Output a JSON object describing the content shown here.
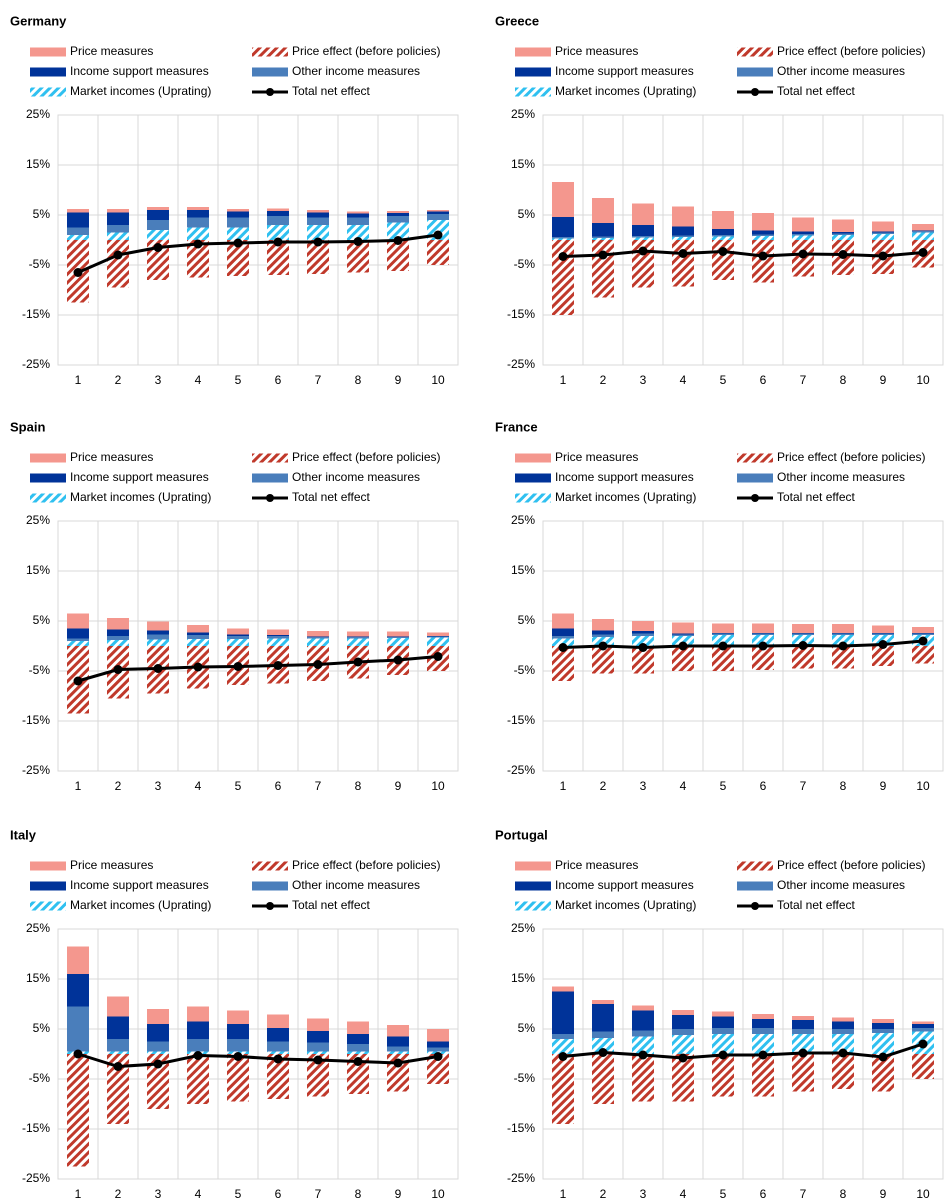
{
  "chart_data": [
    {
      "type": "bar",
      "title": "Germany",
      "categories": [
        1,
        2,
        3,
        4,
        5,
        6,
        7,
        8,
        9,
        10
      ],
      "ylim": [
        -25,
        25
      ],
      "yticks": [
        {
          "value": -25,
          "label": "-25%"
        },
        {
          "value": -15,
          "label": "-15%"
        },
        {
          "value": -5,
          "label": "-5%"
        },
        {
          "value": 5,
          "label": "5%"
        },
        {
          "value": 15,
          "label": "15%"
        },
        {
          "value": 25,
          "label": "25%"
        }
      ],
      "grid": true,
      "series": [
        {
          "name": "Price measures",
          "type": "bar",
          "color": "#f4978e",
          "hatch": false,
          "values": [
            0.7,
            0.7,
            0.6,
            0.6,
            0.5,
            0.5,
            0.5,
            0.4,
            0.4,
            0.3
          ]
        },
        {
          "name": "Price effect (before policies)",
          "type": "bar",
          "color": "#c0392b",
          "hatch": true,
          "values": [
            -12.5,
            -9.5,
            -8,
            -7.5,
            -7.2,
            -7,
            -6.8,
            -6.5,
            -6.2,
            -5
          ]
        },
        {
          "name": "Income support measures",
          "type": "bar",
          "color": "#003399",
          "hatch": false,
          "values": [
            3,
            2.5,
            2,
            1.5,
            1.2,
            1,
            1,
            0.8,
            0.6,
            0.5
          ]
        },
        {
          "name": "Other income measures",
          "type": "bar",
          "color": "#4a7ebb",
          "hatch": false,
          "values": [
            1.5,
            1.5,
            2,
            2,
            2,
            1.8,
            1.5,
            1.5,
            1.3,
            1.2
          ]
        },
        {
          "name": "Market incomes (Uprating)",
          "type": "bar",
          "color": "#2fc0f0",
          "hatch": true,
          "values": [
            1,
            1.5,
            2,
            2.5,
            2.5,
            3,
            3,
            3,
            3.5,
            4
          ]
        },
        {
          "name": "Total net effect",
          "type": "line",
          "color": "#000000",
          "hatch": false,
          "values": [
            -6.5,
            -3,
            -1.5,
            -0.8,
            -0.6,
            -0.4,
            -0.4,
            -0.3,
            -0.1,
            1
          ]
        }
      ]
    },
    {
      "type": "bar",
      "title": "Greece",
      "categories": [
        1,
        2,
        3,
        4,
        5,
        6,
        7,
        8,
        9,
        10
      ],
      "ylim": [
        -25,
        25
      ],
      "yticks": [
        {
          "value": -25,
          "label": "-25%"
        },
        {
          "value": -15,
          "label": "-15%"
        },
        {
          "value": -5,
          "label": "-5%"
        },
        {
          "value": 5,
          "label": "5%"
        },
        {
          "value": 15,
          "label": "15%"
        },
        {
          "value": 25,
          "label": "25%"
        }
      ],
      "grid": true,
      "series": [
        {
          "name": "Price measures",
          "type": "bar",
          "color": "#f4978e",
          "hatch": false,
          "values": [
            7,
            5,
            4.3,
            4,
            3.6,
            3.5,
            2.8,
            2.5,
            2,
            1.3
          ]
        },
        {
          "name": "Price effect (before policies)",
          "type": "bar",
          "color": "#c0392b",
          "hatch": true,
          "values": [
            -15,
            -11.5,
            -9.5,
            -9.3,
            -8,
            -8.5,
            -7.3,
            -7,
            -6.8,
            -5.5
          ]
        },
        {
          "name": "Income support measures",
          "type": "bar",
          "color": "#003399",
          "hatch": false,
          "values": [
            4,
            2.7,
            2.2,
            1.8,
            1.2,
            0.8,
            0.5,
            0.3,
            0.2,
            0.1
          ]
        },
        {
          "name": "Other income measures",
          "type": "bar",
          "color": "#4a7ebb",
          "hatch": false,
          "values": [
            0.3,
            0.3,
            0.3,
            0.3,
            0.3,
            0.3,
            0.3,
            0.3,
            0.3,
            0.3
          ]
        },
        {
          "name": "Market incomes (Uprating)",
          "type": "bar",
          "color": "#2fc0f0",
          "hatch": true,
          "values": [
            0.3,
            0.4,
            0.5,
            0.6,
            0.7,
            0.8,
            0.9,
            1,
            1.2,
            1.5
          ]
        },
        {
          "name": "Total net effect",
          "type": "line",
          "color": "#000000",
          "hatch": false,
          "values": [
            -3.3,
            -3,
            -2.2,
            -2.7,
            -2.3,
            -3.2,
            -2.8,
            -2.9,
            -3.2,
            -2.5
          ]
        }
      ]
    },
    {
      "type": "bar",
      "title": "Spain",
      "categories": [
        1,
        2,
        3,
        4,
        5,
        6,
        7,
        8,
        9,
        10
      ],
      "ylim": [
        -25,
        25
      ],
      "yticks": [
        {
          "value": -25,
          "label": "-25%"
        },
        {
          "value": -15,
          "label": "-15%"
        },
        {
          "value": -5,
          "label": "-5%"
        },
        {
          "value": 5,
          "label": "5%"
        },
        {
          "value": 15,
          "label": "15%"
        },
        {
          "value": 25,
          "label": "25%"
        }
      ],
      "grid": true,
      "series": [
        {
          "name": "Price measures",
          "type": "bar",
          "color": "#f4978e",
          "hatch": false,
          "values": [
            3,
            2.3,
            1.8,
            1.5,
            1.2,
            1.1,
            1.1,
            1,
            1,
            0.7
          ]
        },
        {
          "name": "Price effect (before policies)",
          "type": "bar",
          "color": "#c0392b",
          "hatch": true,
          "values": [
            -13.5,
            -10.5,
            -9.5,
            -8.5,
            -7.8,
            -7.5,
            -7,
            -6.5,
            -5.8,
            -5
          ]
        },
        {
          "name": "Income support measures",
          "type": "bar",
          "color": "#003399",
          "hatch": false,
          "values": [
            2,
            1.3,
            0.8,
            0.5,
            0.3,
            0.2,
            0.1,
            0.1,
            0.1,
            0.1
          ]
        },
        {
          "name": "Other income measures",
          "type": "bar",
          "color": "#4a7ebb",
          "hatch": false,
          "values": [
            0.5,
            0.8,
            1,
            0.8,
            0.6,
            0.5,
            0.3,
            0.3,
            0.2,
            0.2
          ]
        },
        {
          "name": "Market incomes (Uprating)",
          "type": "bar",
          "color": "#2fc0f0",
          "hatch": true,
          "values": [
            1,
            1.2,
            1.3,
            1.4,
            1.4,
            1.5,
            1.5,
            1.5,
            1.6,
            1.7
          ]
        },
        {
          "name": "Total net effect",
          "type": "line",
          "color": "#000000",
          "hatch": false,
          "values": [
            -7,
            -4.7,
            -4.5,
            -4.2,
            -4.1,
            -3.9,
            -3.7,
            -3.2,
            -2.8,
            -2.1
          ]
        }
      ]
    },
    {
      "type": "bar",
      "title": "France",
      "categories": [
        1,
        2,
        3,
        4,
        5,
        6,
        7,
        8,
        9,
        10
      ],
      "ylim": [
        -25,
        25
      ],
      "yticks": [
        {
          "value": -25,
          "label": "-25%"
        },
        {
          "value": -15,
          "label": "-15%"
        },
        {
          "value": -5,
          "label": "-5%"
        },
        {
          "value": 5,
          "label": "5%"
        },
        {
          "value": 15,
          "label": "15%"
        },
        {
          "value": 25,
          "label": "25%"
        }
      ],
      "grid": true,
      "series": [
        {
          "name": "Price measures",
          "type": "bar",
          "color": "#f4978e",
          "hatch": false,
          "values": [
            3,
            2.3,
            2,
            2.2,
            1.9,
            1.9,
            1.8,
            1.8,
            1.5,
            1.2
          ]
        },
        {
          "name": "Price effect (before policies)",
          "type": "bar",
          "color": "#c0392b",
          "hatch": true,
          "values": [
            -7,
            -5.5,
            -5.5,
            -5,
            -5,
            -4.8,
            -4.5,
            -4.5,
            -4,
            -3.5
          ]
        },
        {
          "name": "Income support measures",
          "type": "bar",
          "color": "#003399",
          "hatch": false,
          "values": [
            1.5,
            0.8,
            0.5,
            0.2,
            0.1,
            0.1,
            0.1,
            0.1,
            0.1,
            0.1
          ]
        },
        {
          "name": "Other income measures",
          "type": "bar",
          "color": "#4a7ebb",
          "hatch": false,
          "values": [
            0.5,
            0.5,
            0.5,
            0.3,
            0.3,
            0.3,
            0.3,
            0.3,
            0.3,
            0.3
          ]
        },
        {
          "name": "Market incomes (Uprating)",
          "type": "bar",
          "color": "#2fc0f0",
          "hatch": true,
          "values": [
            1.5,
            1.8,
            2,
            2,
            2.2,
            2.2,
            2.2,
            2.2,
            2.2,
            2.2
          ]
        },
        {
          "name": "Total net effect",
          "type": "line",
          "color": "#000000",
          "hatch": false,
          "values": [
            -0.3,
            0,
            -0.3,
            0,
            0,
            0,
            0.1,
            0,
            0.3,
            1
          ]
        }
      ]
    },
    {
      "type": "bar",
      "title": "Italy",
      "categories": [
        1,
        2,
        3,
        4,
        5,
        6,
        7,
        8,
        9,
        10
      ],
      "ylim": [
        -25,
        25
      ],
      "yticks": [
        {
          "value": -25,
          "label": "-25%"
        },
        {
          "value": -15,
          "label": "-15%"
        },
        {
          "value": -5,
          "label": "-5%"
        },
        {
          "value": 5,
          "label": "5%"
        },
        {
          "value": 15,
          "label": "15%"
        },
        {
          "value": 25,
          "label": "25%"
        }
      ],
      "grid": true,
      "series": [
        {
          "name": "Price measures",
          "type": "bar",
          "color": "#f4978e",
          "hatch": false,
          "values": [
            5.5,
            4,
            3,
            3,
            2.7,
            2.7,
            2.5,
            2.5,
            2.3,
            2.5
          ]
        },
        {
          "name": "Price effect (before policies)",
          "type": "bar",
          "color": "#c0392b",
          "hatch": true,
          "values": [
            -22.5,
            -14,
            -11,
            -10,
            -9.5,
            -9,
            -8.5,
            -8,
            -7.5,
            -6
          ]
        },
        {
          "name": "Income support measures",
          "type": "bar",
          "color": "#003399",
          "hatch": false,
          "values": [
            6.5,
            4.5,
            3.5,
            3.5,
            3,
            2.7,
            2.3,
            2,
            2,
            1.2
          ]
        },
        {
          "name": "Other income measures",
          "type": "bar",
          "color": "#4a7ebb",
          "hatch": false,
          "values": [
            9,
            2.5,
            2,
            2.5,
            2.5,
            2,
            1.8,
            1.5,
            1,
            0.8
          ]
        },
        {
          "name": "Market incomes (Uprating)",
          "type": "bar",
          "color": "#2fc0f0",
          "hatch": true,
          "values": [
            0.5,
            0.5,
            0.5,
            0.5,
            0.5,
            0.5,
            0.5,
            0.5,
            0.5,
            0.5
          ]
        },
        {
          "name": "Total net effect",
          "type": "line",
          "color": "#000000",
          "hatch": false,
          "values": [
            0,
            -2.5,
            -2,
            -0.3,
            -0.5,
            -1,
            -1.2,
            -1.5,
            -1.8,
            -0.5
          ]
        }
      ]
    },
    {
      "type": "bar",
      "title": "Portugal",
      "categories": [
        1,
        2,
        3,
        4,
        5,
        6,
        7,
        8,
        9,
        10
      ],
      "ylim": [
        -25,
        25
      ],
      "yticks": [
        {
          "value": -25,
          "label": "-25%"
        },
        {
          "value": -15,
          "label": "-15%"
        },
        {
          "value": -5,
          "label": "-5%"
        },
        {
          "value": 5,
          "label": "5%"
        },
        {
          "value": 15,
          "label": "15%"
        },
        {
          "value": 25,
          "label": "25%"
        }
      ],
      "grid": true,
      "series": [
        {
          "name": "Price measures",
          "type": "bar",
          "color": "#f4978e",
          "hatch": false,
          "values": [
            1,
            0.8,
            1,
            1,
            1,
            1,
            0.8,
            0.8,
            0.8,
            0.5
          ]
        },
        {
          "name": "Price effect (before policies)",
          "type": "bar",
          "color": "#c0392b",
          "hatch": true,
          "values": [
            -14,
            -10,
            -9.5,
            -9.5,
            -8.5,
            -8.5,
            -7.5,
            -7,
            -7.5,
            -5
          ]
        },
        {
          "name": "Income support measures",
          "type": "bar",
          "color": "#003399",
          "hatch": false,
          "values": [
            8.5,
            5.5,
            4,
            2.8,
            2.3,
            1.8,
            1.8,
            1.5,
            1.2,
            0.8
          ]
        },
        {
          "name": "Other income measures",
          "type": "bar",
          "color": "#4a7ebb",
          "hatch": false,
          "values": [
            1,
            1.3,
            1.2,
            1.2,
            1.2,
            1.2,
            1,
            1,
            0.8,
            0.7
          ]
        },
        {
          "name": "Market incomes (Uprating)",
          "type": "bar",
          "color": "#2fc0f0",
          "hatch": true,
          "values": [
            3,
            3.2,
            3.5,
            3.8,
            4,
            4,
            4,
            4,
            4.2,
            4.5
          ]
        },
        {
          "name": "Total net effect",
          "type": "line",
          "color": "#000000",
          "hatch": false,
          "values": [
            -0.5,
            0.3,
            -0.2,
            -0.8,
            -0.2,
            -0.2,
            0.2,
            0.2,
            -0.6,
            2
          ]
        }
      ]
    }
  ]
}
